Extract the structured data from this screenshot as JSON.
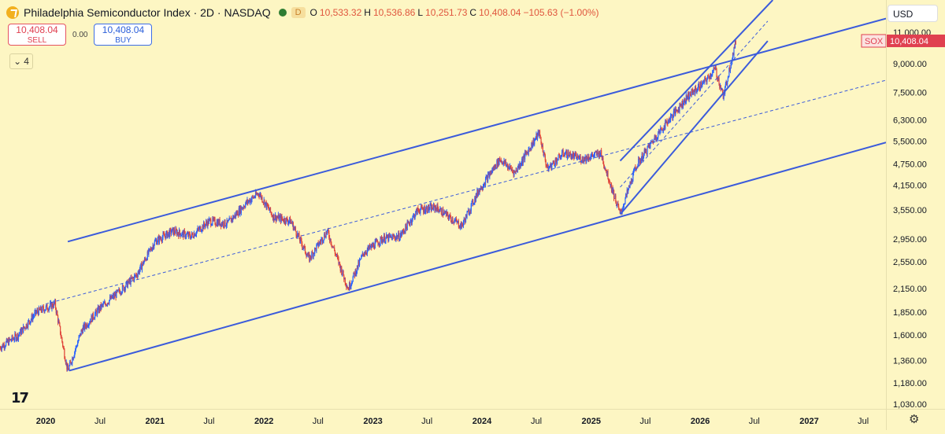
{
  "header": {
    "title": "Philadelphia Semiconductor Index · 2D · NASDAQ",
    "interval_badge": "D",
    "open_label": "O",
    "open": "10,533.32",
    "high_label": "H",
    "high": "10,536.86",
    "low_label": "L",
    "low": "10,251.73",
    "close_label": "C",
    "close": "10,408.04",
    "change": "−105.63 (−1.00%)"
  },
  "trade": {
    "sell_price": "10,408.04",
    "sell_label": "SELL",
    "spread": "0.00",
    "buy_price": "10,408.04",
    "buy_label": "BUY"
  },
  "collapse_count": "4",
  "currency": "USD",
  "price_tag": {
    "symbol": "SOX",
    "value": "10,408.04"
  },
  "colors": {
    "background": "#fdf6c3",
    "channel": "#3b5bdb",
    "up": "#2962ff",
    "down": "#e0453a",
    "tag": "#e04050"
  },
  "icons": {
    "tv_logo": "tradingview-logo-icon",
    "settings": "settings-gear-icon",
    "symbol": "symbol-logo-icon"
  },
  "chart_data": {
    "type": "candlestick",
    "y_scale": "log",
    "ylim": [
      1000,
      13500
    ],
    "xlim": [
      "2019-08-01",
      "2027-09-15"
    ],
    "y_ticks": [
      {
        "value": 11000,
        "label": "11,000.00"
      },
      {
        "value": 9000,
        "label": "9,000.00"
      },
      {
        "value": 7500,
        "label": "7,500.00"
      },
      {
        "value": 6300,
        "label": "6,300.00"
      },
      {
        "value": 5500,
        "label": "5,500.00"
      },
      {
        "value": 4750,
        "label": "4,750.00"
      },
      {
        "value": 4150,
        "label": "4,150.00"
      },
      {
        "value": 3550,
        "label": "3,550.00"
      },
      {
        "value": 2950,
        "label": "2,950.00"
      },
      {
        "value": 2550,
        "label": "2,550.00"
      },
      {
        "value": 2150,
        "label": "2,150.00"
      },
      {
        "value": 1850,
        "label": "1,850.00"
      },
      {
        "value": 1600,
        "label": "1,600.00"
      },
      {
        "value": 1360,
        "label": "1,360.00"
      },
      {
        "value": 1180,
        "label": "1,180.00"
      },
      {
        "value": 1030,
        "label": "1,030.00"
      }
    ],
    "x_ticks": [
      {
        "date": "2020-01-01",
        "label": "2020",
        "bold": true
      },
      {
        "date": "2020-07-01",
        "label": "Jul",
        "bold": false
      },
      {
        "date": "2021-01-01",
        "label": "2021",
        "bold": true
      },
      {
        "date": "2021-07-01",
        "label": "Jul",
        "bold": false
      },
      {
        "date": "2022-01-01",
        "label": "2022",
        "bold": true
      },
      {
        "date": "2022-07-01",
        "label": "Jul",
        "bold": false
      },
      {
        "date": "2023-01-01",
        "label": "2023",
        "bold": true
      },
      {
        "date": "2023-07-01",
        "label": "Jul",
        "bold": false
      },
      {
        "date": "2024-01-01",
        "label": "2024",
        "bold": true
      },
      {
        "date": "2024-07-01",
        "label": "Jul",
        "bold": false
      },
      {
        "date": "2025-01-01",
        "label": "2025",
        "bold": true
      },
      {
        "date": "2025-07-01",
        "label": "Jul",
        "bold": false
      },
      {
        "date": "2026-01-01",
        "label": "2026",
        "bold": true
      },
      {
        "date": "2026-07-01",
        "label": "Jul",
        "bold": false
      },
      {
        "date": "2027-01-01",
        "label": "2027",
        "bold": true
      },
      {
        "date": "2027-07-01",
        "label": "Jul",
        "bold": false
      }
    ],
    "price_path": [
      [
        "2019-08-01",
        1480
      ],
      [
        "2019-10-01",
        1600
      ],
      [
        "2019-12-01",
        1850
      ],
      [
        "2020-02-01",
        1950
      ],
      [
        "2020-03-15",
        1270
      ],
      [
        "2020-05-01",
        1650
      ],
      [
        "2020-07-01",
        1900
      ],
      [
        "2020-09-01",
        2100
      ],
      [
        "2020-11-01",
        2350
      ],
      [
        "2021-01-01",
        2900
      ],
      [
        "2021-03-01",
        3100
      ],
      [
        "2021-05-01",
        3000
      ],
      [
        "2021-07-01",
        3300
      ],
      [
        "2021-09-01",
        3250
      ],
      [
        "2021-11-01",
        3700
      ],
      [
        "2021-12-15",
        3950
      ],
      [
        "2022-02-01",
        3400
      ],
      [
        "2022-04-01",
        3300
      ],
      [
        "2022-06-01",
        2600
      ],
      [
        "2022-08-01",
        3100
      ],
      [
        "2022-10-10",
        2150
      ],
      [
        "2022-12-01",
        2700
      ],
      [
        "2023-02-01",
        2950
      ],
      [
        "2023-04-01",
        3000
      ],
      [
        "2023-06-01",
        3550
      ],
      [
        "2023-08-01",
        3600
      ],
      [
        "2023-10-25",
        3200
      ],
      [
        "2023-12-20",
        4000
      ],
      [
        "2024-03-01",
        4900
      ],
      [
        "2024-04-20",
        4500
      ],
      [
        "2024-07-10",
        5800
      ],
      [
        "2024-08-07",
        4600
      ],
      [
        "2024-10-01",
        5100
      ],
      [
        "2024-12-01",
        4900
      ],
      [
        "2025-02-01",
        5100
      ],
      [
        "2025-04-08",
        3450
      ],
      [
        "2025-06-01",
        4700
      ],
      [
        "2025-08-01",
        5600
      ],
      [
        "2025-10-01",
        6500
      ],
      [
        "2025-11-20",
        7300
      ],
      [
        "2026-01-15",
        8000
      ],
      [
        "2026-02-20",
        8700
      ],
      [
        "2026-03-20",
        7300
      ],
      [
        "2026-04-10",
        8800
      ],
      [
        "2026-05-01",
        10408
      ]
    ],
    "lines": [
      {
        "name": "channel-upper",
        "style": "solid",
        "p1": [
          "2020-03-15",
          2900
        ],
        "p2": [
          "2027-09-15",
          12000
        ]
      },
      {
        "name": "channel-mid",
        "style": "dashed",
        "p1": [
          "2020-01-01",
          1950
        ],
        "p2": [
          "2027-09-15",
          8100
        ]
      },
      {
        "name": "channel-lower",
        "style": "solid",
        "p1": [
          "2020-03-20",
          1275
        ],
        "p2": [
          "2027-09-15",
          5450
        ]
      },
      {
        "name": "steep-upper",
        "style": "solid",
        "p1": [
          "2025-04-08",
          4850
        ],
        "p2": [
          "2026-09-01",
          13500
        ]
      },
      {
        "name": "steep-mid",
        "style": "dashed",
        "p1": [
          "2025-04-08",
          4100
        ],
        "p2": [
          "2026-08-15",
          11800
        ]
      },
      {
        "name": "steep-lower",
        "style": "solid",
        "p1": [
          "2025-04-08",
          3450
        ],
        "p2": [
          "2026-08-15",
          10400
        ]
      }
    ]
  }
}
